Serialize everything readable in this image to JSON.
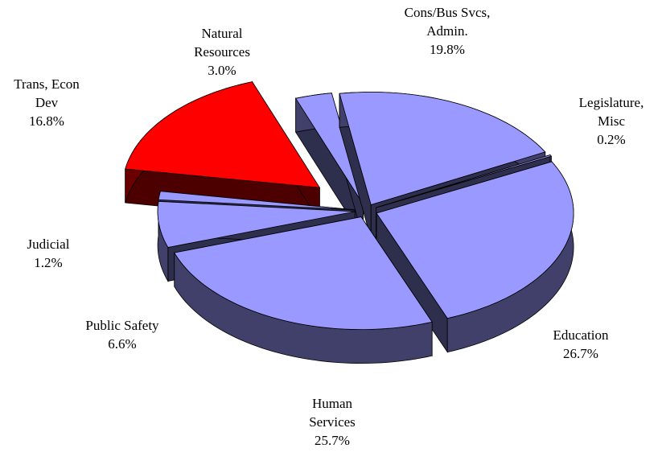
{
  "chart_data": {
    "type": "pie",
    "categories": [
      "Natural Resources",
      "Cons/Bus Svcs, Admin.",
      "Legislature, Misc",
      "Education",
      "Human Services",
      "Public Safety",
      "Judicial",
      "Trans, Econ Dev"
    ],
    "values": [
      3.0,
      19.8,
      0.2,
      26.7,
      25.7,
      6.6,
      1.2,
      16.8
    ],
    "value_labels": [
      "3.0%",
      "19.8%",
      "0.2%",
      "26.7%",
      "25.7%",
      "6.6%",
      "1.2%",
      "16.8%"
    ],
    "colors": [
      "#9999ff",
      "#9999ff",
      "#9999ff",
      "#9999ff",
      "#9999ff",
      "#9999ff",
      "#9999ff",
      "#ff0000"
    ]
  }
}
